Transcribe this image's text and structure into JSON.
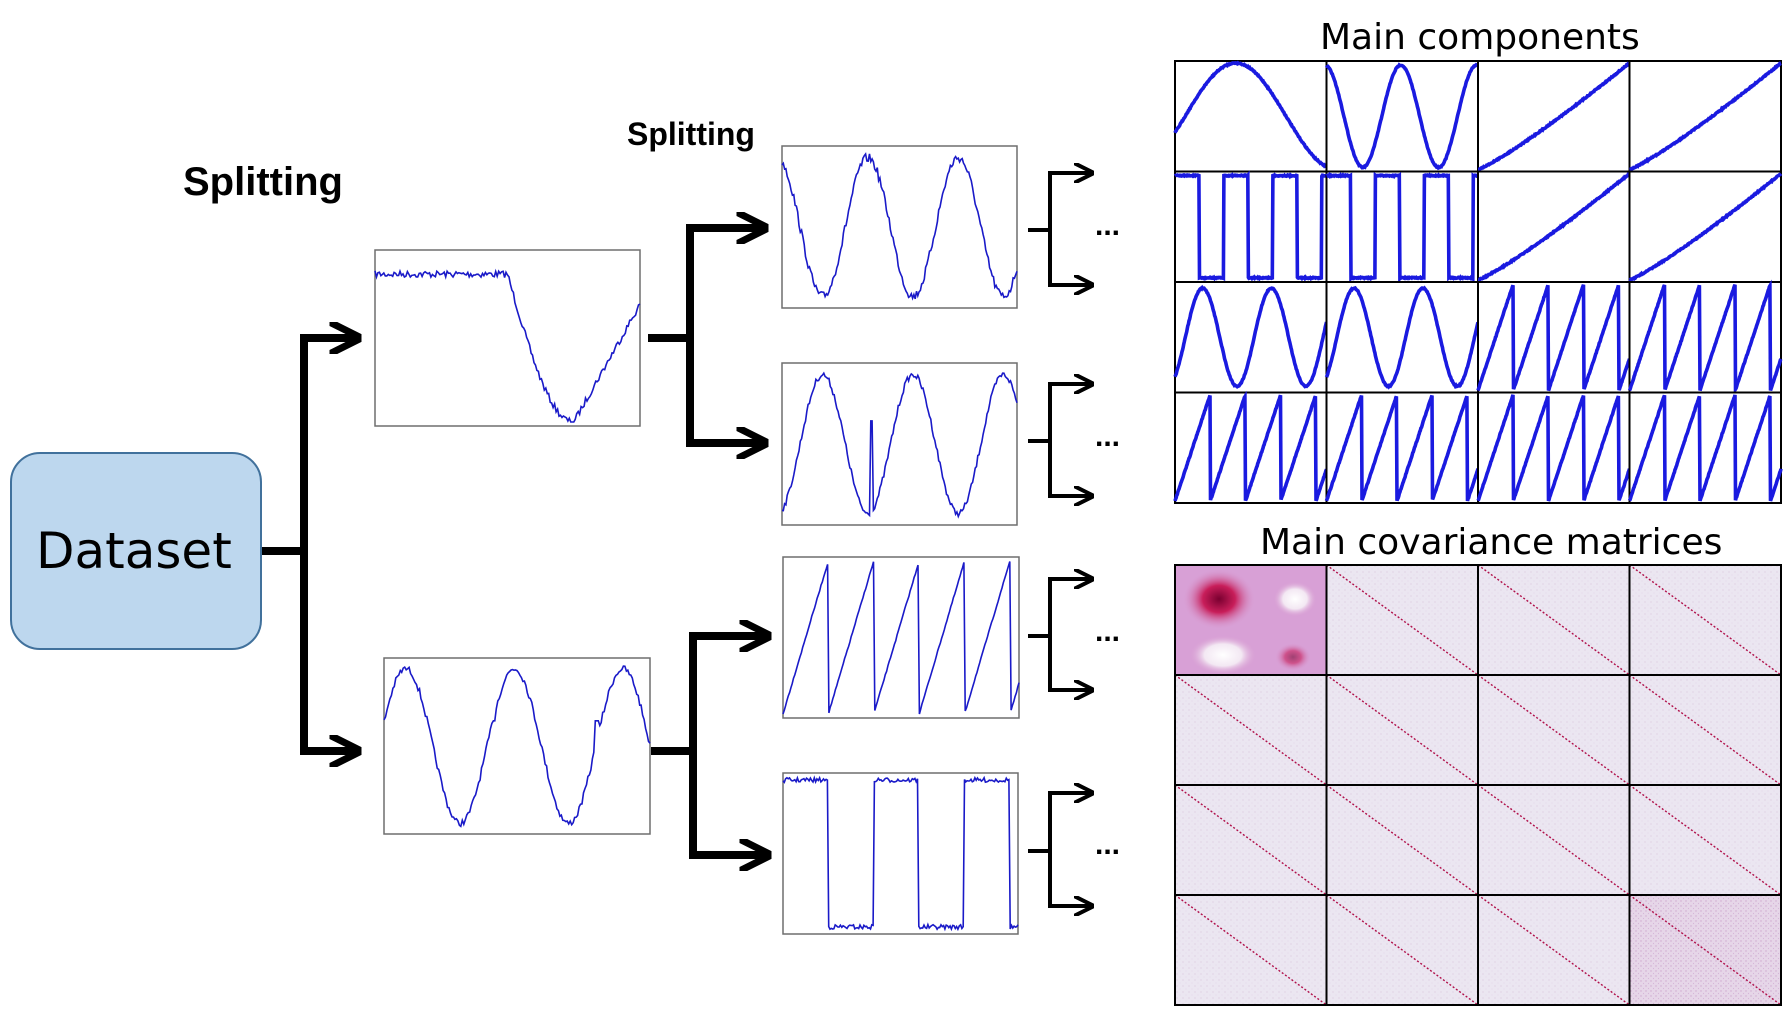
{
  "labels": {
    "splitting_level1": "Splitting",
    "splitting_level2": "Splitting",
    "dataset": "Dataset",
    "main_components": "Main components",
    "main_covariance": "Main covariance matrices",
    "ellipsis": "..."
  },
  "colors": {
    "signal_line": "#1a1ac8",
    "component_line": "#1a1ae0",
    "dataset_fill": "#bdd7ee",
    "dataset_border": "#41719c",
    "covariance_diag": "#b0104a",
    "covariance_bg": "#ece6f0",
    "arrow": "#000000"
  },
  "icons": {
    "branch_arrow": "right-arrow-icon",
    "ellipsis": "ellipsis-icon"
  },
  "components_grid": {
    "rows": 4,
    "cols": 4,
    "cells": [
      "half-sine",
      "double-sine",
      "rising-curve",
      "rising-curve",
      "square-wave",
      "square-wave",
      "rising-curve",
      "rising-curve",
      "triple-sine",
      "triple-sine",
      "sawtooth",
      "sawtooth",
      "sawtooth",
      "sawtooth",
      "sawtooth",
      "sawtooth"
    ]
  },
  "covariance_grid": {
    "rows": 4,
    "cols": 4,
    "cells": [
      "blob",
      "diagonal",
      "diagonal",
      "diagonal",
      "diagonal",
      "diagonal",
      "diagonal",
      "diagonal",
      "diagonal",
      "diagonal",
      "diagonal",
      "diagonal",
      "diagonal",
      "diagonal",
      "diagonal",
      "diagonal-dense"
    ]
  }
}
